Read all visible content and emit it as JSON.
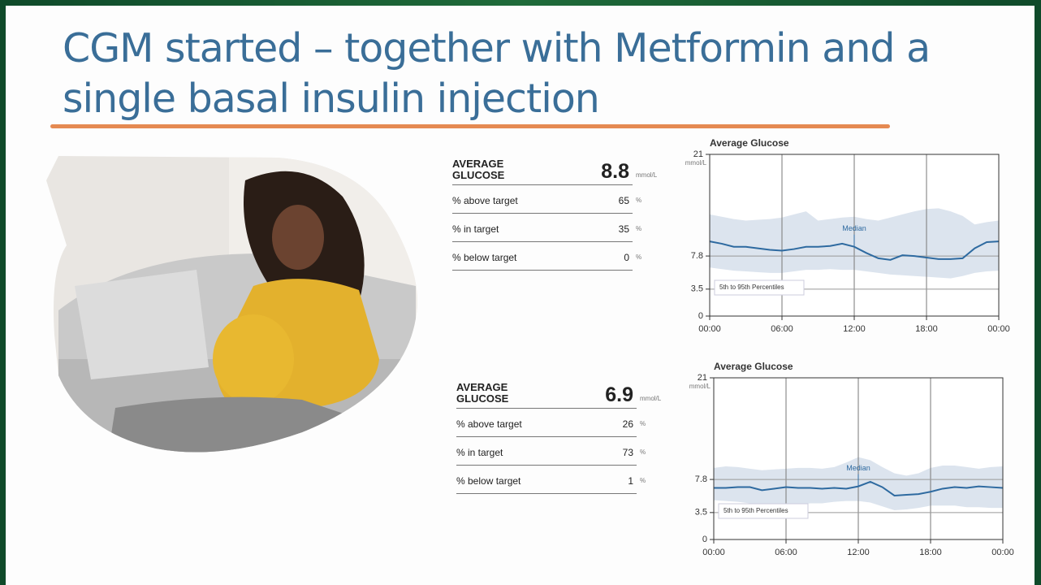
{
  "title": "CGM started – together with Metformin and a single basal insulin injection",
  "stats": [
    {
      "heading": "AVERAGE GLUCOSE",
      "value": 8.8,
      "unit": "mmol/L",
      "rows": [
        {
          "label": "% above target",
          "value": 65,
          "unit": "%"
        },
        {
          "label": "% in target",
          "value": 35,
          "unit": "%"
        },
        {
          "label": "% below target",
          "value": 0,
          "unit": "%"
        }
      ]
    },
    {
      "heading": "AVERAGE GLUCOSE",
      "value": 6.9,
      "unit": "mmol/L",
      "rows": [
        {
          "label": "% above target",
          "value": 26,
          "unit": "%"
        },
        {
          "label": "% in target",
          "value": 73,
          "unit": "%"
        },
        {
          "label": "% below target",
          "value": 1,
          "unit": "%"
        }
      ]
    }
  ],
  "chart_data": [
    {
      "type": "line",
      "title": "Average Glucose",
      "y_unit": "mmol/L",
      "x": [
        0,
        1,
        2,
        3,
        4,
        5,
        6,
        7,
        8,
        9,
        10,
        11,
        12,
        13,
        14,
        15,
        16,
        17,
        18,
        19,
        20,
        21,
        22,
        23,
        24
      ],
      "xlim": [
        0,
        24
      ],
      "xticks": [
        {
          "value": 0,
          "label": "00:00"
        },
        {
          "value": 6,
          "label": "06:00"
        },
        {
          "value": 12,
          "label": "12:00"
        },
        {
          "value": 18,
          "label": "18:00"
        },
        {
          "value": 24,
          "label": "00:00"
        }
      ],
      "ylim": [
        0,
        21
      ],
      "yticks": [
        0,
        3.5,
        7.8,
        21
      ],
      "grid": true,
      "series": [
        {
          "name": "Median",
          "color": "#2e6aa0",
          "values": [
            9.7,
            9.4,
            9.0,
            9.0,
            8.8,
            8.6,
            8.5,
            8.7,
            9.0,
            9.0,
            9.1,
            9.4,
            9.0,
            8.2,
            7.5,
            7.3,
            7.9,
            7.8,
            7.6,
            7.4,
            7.4,
            7.5,
            8.8,
            9.6,
            9.7
          ]
        }
      ],
      "band": {
        "name": "5th to 95th Percentiles",
        "color": "#dce4ee",
        "upper": [
          13.2,
          12.9,
          12.6,
          12.4,
          12.5,
          12.6,
          12.8,
          13.2,
          13.6,
          12.4,
          12.6,
          12.8,
          12.9,
          12.6,
          12.4,
          12.8,
          13.2,
          13.6,
          13.9,
          14.0,
          13.6,
          13.0,
          11.9,
          12.2,
          12.4
        ],
        "lower": [
          6.3,
          6.1,
          5.9,
          5.8,
          5.7,
          5.6,
          5.6,
          5.8,
          6.0,
          6.0,
          6.1,
          6.0,
          6.0,
          5.8,
          5.6,
          5.4,
          5.3,
          5.2,
          5.1,
          5.0,
          4.9,
          5.2,
          5.6,
          5.8,
          5.9
        ]
      }
    },
    {
      "type": "line",
      "title": "Average Glucose",
      "y_unit": "mmol/L",
      "x": [
        0,
        1,
        2,
        3,
        4,
        5,
        6,
        7,
        8,
        9,
        10,
        11,
        12,
        13,
        14,
        15,
        16,
        17,
        18,
        19,
        20,
        21,
        22,
        23,
        24
      ],
      "xlim": [
        0,
        24
      ],
      "xticks": [
        {
          "value": 0,
          "label": "00:00"
        },
        {
          "value": 6,
          "label": "06:00"
        },
        {
          "value": 12,
          "label": "12:00"
        },
        {
          "value": 18,
          "label": "18:00"
        },
        {
          "value": 24,
          "label": "00:00"
        }
      ],
      "ylim": [
        0,
        21
      ],
      "yticks": [
        0,
        3.5,
        7.8,
        21
      ],
      "grid": true,
      "series": [
        {
          "name": "Median",
          "color": "#2e6aa0",
          "values": [
            6.7,
            6.7,
            6.8,
            6.8,
            6.4,
            6.6,
            6.8,
            6.7,
            6.7,
            6.6,
            6.7,
            6.6,
            6.9,
            7.5,
            6.8,
            5.7,
            5.8,
            5.9,
            6.2,
            6.6,
            6.8,
            6.7,
            6.9,
            6.8,
            6.7
          ]
        }
      ],
      "band": {
        "name": "5th to 95th Percentiles",
        "color": "#dce4ee",
        "upper": [
          9.3,
          9.5,
          9.4,
          9.2,
          9.0,
          9.1,
          9.2,
          9.3,
          9.3,
          9.2,
          9.4,
          10.0,
          10.7,
          10.3,
          9.4,
          8.6,
          8.3,
          8.6,
          9.3,
          9.6,
          9.6,
          9.4,
          9.2,
          9.4,
          9.5
        ],
        "lower": [
          5.1,
          5.0,
          4.9,
          4.7,
          4.5,
          4.4,
          4.4,
          4.5,
          4.7,
          4.7,
          4.9,
          5.0,
          5.0,
          4.8,
          4.3,
          3.8,
          3.9,
          4.1,
          4.4,
          4.4,
          4.4,
          4.2,
          4.2,
          4.1,
          4.1
        ]
      }
    }
  ]
}
